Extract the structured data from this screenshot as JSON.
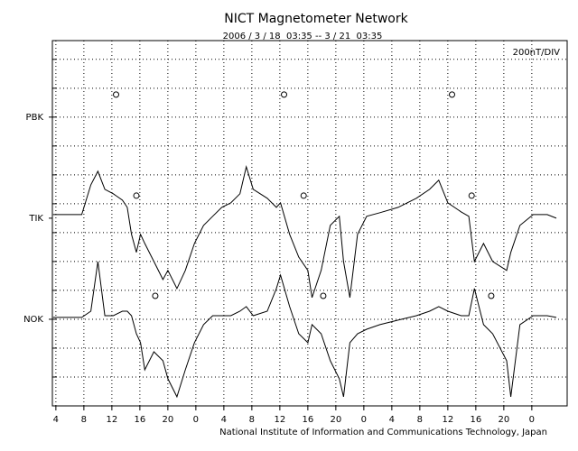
{
  "chart_data": {
    "type": "line",
    "title": "NICT Magnetometer Network",
    "subtitle": "2006 / 3 / 18  03:35 -- 3 / 21  03:35",
    "annotation": "200nT/DIV",
    "footer": "National Institute of Information and Communications Technology, Japan",
    "x": [
      3.6,
      7.7,
      9.0,
      10.0,
      11.0,
      12.2,
      13.5,
      14.2,
      14.8,
      15.5,
      16.1,
      16.7,
      18.0,
      19.3,
      20.0,
      21.3,
      22.5,
      23.8,
      25.1,
      26.4,
      27.7,
      29.0,
      30.3,
      31.2,
      32.2,
      34.2,
      35.5,
      36.1,
      37.4,
      38.7,
      40.0,
      40.6,
      41.9,
      43.2,
      44.5,
      45.1,
      46.0,
      47.1,
      48.4,
      50.3,
      52.9,
      55.5,
      57.4,
      58.7,
      60.0,
      61.9,
      63.0,
      63.8,
      65.1,
      66.4,
      68.4,
      69.0,
      70.3,
      72.2,
      74.2,
      75.5
    ],
    "series": [
      {
        "color": "#000000",
        "values": [
          1325,
          1325,
          1531,
          1625,
          1500,
          1469,
          1425,
          1375,
          1188,
          1063,
          1188,
          1125,
          1000,
          875,
          938,
          813,
          938,
          1125,
          1250,
          1313,
          1375,
          1406,
          1469,
          1656,
          1500,
          1438,
          1375,
          1406,
          1188,
          1031,
          938,
          750,
          938,
          1250,
          1313,
          1000,
          750,
          1188,
          1313,
          1338,
          1375,
          1438,
          1500,
          1563,
          1406,
          1344,
          1313,
          1000,
          1125,
          1000,
          938,
          1063,
          1250,
          1325,
          1325,
          1300
        ]
      },
      {
        "color": "#000000",
        "values": [
          613,
          613,
          656,
          1000,
          625,
          625,
          656,
          656,
          625,
          500,
          438,
          250,
          375,
          313,
          188,
          63,
          250,
          438,
          563,
          625,
          625,
          625,
          656,
          688,
          625,
          656,
          813,
          906,
          688,
          500,
          438,
          563,
          500,
          313,
          188,
          63,
          438,
          500,
          531,
          563,
          594,
          625,
          656,
          688,
          656,
          625,
          625,
          813,
          563,
          500,
          313,
          63,
          563,
          625,
          625,
          613
        ]
      }
    ],
    "markers": [
      {
        "x": [
          12.6,
          36.6,
          60.6
        ],
        "y": 2156
      },
      {
        "x": [
          15.5,
          39.4,
          63.4
        ],
        "y": 1456
      },
      {
        "x": [
          18.2,
          42.2,
          66.2
        ],
        "y": 762
      }
    ],
    "xlim": [
      3.5,
      77.05
    ],
    "xticks": [
      4,
      8,
      12,
      16,
      20,
      {
        "value": 24,
        "label": "0"
      },
      {
        "value": 28,
        "label": "4"
      },
      {
        "value": 32,
        "label": "8"
      },
      {
        "value": 36,
        "label": "12"
      },
      {
        "value": 40,
        "label": "16"
      },
      {
        "value": 44,
        "label": "20"
      },
      {
        "value": 48,
        "label": "0"
      },
      {
        "value": 52,
        "label": "4"
      },
      {
        "value": 56,
        "label": "8"
      },
      {
        "value": 60,
        "label": "12"
      },
      {
        "value": 64,
        "label": "16"
      },
      {
        "value": 68,
        "label": "20"
      },
      {
        "value": 72,
        "label": "0"
      }
    ],
    "ylim": [
      0,
      2530
    ],
    "yticks": [
      {
        "value": 2000,
        "label": "PBK"
      },
      {
        "value": 1300,
        "label": "TIK"
      },
      {
        "value": 600,
        "label": "NOK"
      }
    ],
    "ygrid": [
      200,
      400,
      600,
      800,
      1000,
      1200,
      1400,
      1600,
      1800,
      2000,
      2200,
      2400
    ],
    "grid": true
  }
}
